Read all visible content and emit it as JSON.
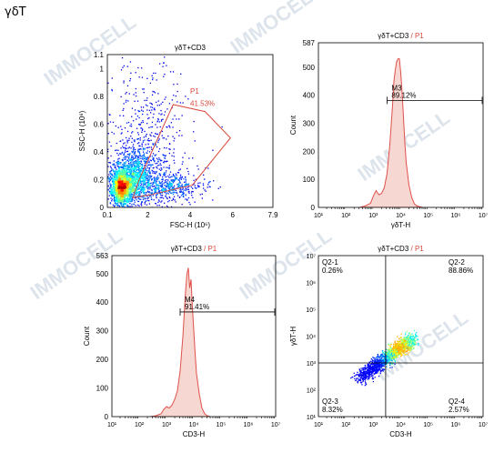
{
  "page_title": "γδT",
  "watermark": "IMMOCELL",
  "colors": {
    "gate": "#d9483b",
    "axis": "#000000",
    "hist_fill": "#f7d7d2",
    "hist_line": "#e0504a"
  },
  "chart_data": [
    {
      "id": "fsc_ssc",
      "type": "scatter",
      "title": "γδT+CD3",
      "xlabel": "FSC-H (10⁶)",
      "ylabel": "SSC-H (10⁶)",
      "xlim": [
        0.1,
        7.9
      ],
      "ylim": [
        0,
        1.1
      ],
      "xticks": [
        0.1,
        2,
        4,
        6,
        7.9
      ],
      "yticks": [
        0,
        0.2,
        0.4,
        0.6,
        0.8,
        1,
        1.1
      ],
      "gate": {
        "name": "P1",
        "percent": "41.53%",
        "polygon": [
          [
            1.3,
            0.07
          ],
          [
            1.6,
            0.2
          ],
          [
            3.2,
            0.74
          ],
          [
            4.7,
            0.69
          ],
          [
            5.9,
            0.5
          ],
          [
            4.1,
            0.16
          ],
          [
            2.1,
            0.09
          ]
        ]
      },
      "density_clusters": [
        {
          "x": 0.75,
          "y": 0.15,
          "sx": 0.3,
          "sy": 0.07,
          "n": 1800
        },
        {
          "x": 1.4,
          "y": 0.22,
          "sx": 0.7,
          "sy": 0.12,
          "n": 1200
        },
        {
          "x": 2.0,
          "y": 0.5,
          "sx": 1.2,
          "sy": 0.35,
          "n": 500
        },
        {
          "x": 3.0,
          "y": 0.15,
          "sx": 1.0,
          "sy": 0.06,
          "n": 400
        }
      ]
    },
    {
      "id": "ygdt_hist",
      "type": "area",
      "title": "γδT+CD3 / P1",
      "title_parts": [
        "γδT+CD3",
        " / ",
        "P1"
      ],
      "xlabel": "γδT-H",
      "ylabel": "Count",
      "xscale": "log",
      "xlim": [
        1,
        7
      ],
      "ylim": [
        0,
        587
      ],
      "xticks": [
        "10¹",
        "10²",
        "10³",
        "10⁴",
        "10⁵",
        "10⁶",
        "10⁷"
      ],
      "yticks": [
        0,
        100,
        200,
        300,
        400,
        500,
        587
      ],
      "x": [
        2.5,
        2.7,
        2.9,
        3.0,
        3.1,
        3.2,
        3.3,
        3.4,
        3.5,
        3.6,
        3.7,
        3.75,
        3.8,
        3.85,
        3.9,
        3.95,
        4.0,
        4.05,
        4.1,
        4.15,
        4.2,
        4.3,
        4.4,
        4.5,
        4.6,
        4.7,
        4.8
      ],
      "values": [
        0,
        5,
        15,
        40,
        60,
        45,
        50,
        70,
        120,
        220,
        360,
        450,
        490,
        520,
        530,
        530,
        480,
        410,
        320,
        230,
        160,
        80,
        35,
        12,
        5,
        2,
        0
      ],
      "marker": {
        "name": "M3",
        "percent": "89.12%",
        "from": 3.5,
        "to": 7
      }
    },
    {
      "id": "cd3_hist",
      "type": "area",
      "title": "γδT+CD3 / P1",
      "title_parts": [
        "γδT+CD3",
        " / ",
        "P1"
      ],
      "xlabel": "CD3-H",
      "ylabel": "Count",
      "xscale": "log",
      "xlim": [
        1,
        7
      ],
      "ylim": [
        0,
        563
      ],
      "xticks": [
        "10¹",
        "10²",
        "10³",
        "10⁴",
        "10⁵",
        "10⁶",
        "10⁷"
      ],
      "yticks": [
        0,
        100,
        200,
        300,
        400,
        500,
        563
      ],
      "x": [
        2.4,
        2.6,
        2.8,
        2.9,
        3.0,
        3.1,
        3.2,
        3.3,
        3.4,
        3.5,
        3.6,
        3.65,
        3.7,
        3.75,
        3.8,
        3.85,
        3.9,
        3.95,
        4.0,
        4.05,
        4.1,
        4.2,
        4.3,
        4.4,
        4.5,
        4.6
      ],
      "values": [
        0,
        3,
        10,
        25,
        35,
        30,
        40,
        60,
        90,
        160,
        280,
        360,
        440,
        500,
        520,
        450,
        480,
        380,
        300,
        220,
        150,
        80,
        30,
        10,
        3,
        0
      ],
      "marker": {
        "name": "M4",
        "percent": "91.41%",
        "from": 3.5,
        "to": 7
      }
    },
    {
      "id": "quadrant",
      "type": "scatter",
      "title": "γδT+CD3 / P1",
      "title_parts": [
        "γδT+CD3",
        " / ",
        "P1"
      ],
      "xlabel": "CD3-H",
      "ylabel": "γδT-H",
      "xscale": "log",
      "yscale": "log",
      "xlim": [
        1,
        7
      ],
      "ylim": [
        1,
        7
      ],
      "xticks": [
        "10¹",
        "10²",
        "10³",
        "10⁴",
        "10⁵",
        "10⁶",
        "10⁷"
      ],
      "yticks": [
        "10¹",
        "10²",
        "10³",
        "10⁴",
        "10⁵",
        "10⁶",
        "10⁷"
      ],
      "quadrant_split": {
        "x": 3.45,
        "y": 3.0
      },
      "quadrants": [
        {
          "name": "Q2-1",
          "percent": "0.26%",
          "corner": "top-left"
        },
        {
          "name": "Q2-2",
          "percent": "88.86%",
          "corner": "top-right"
        },
        {
          "name": "Q2-3",
          "percent": "8.32%",
          "corner": "bottom-left"
        },
        {
          "name": "Q2-4",
          "percent": "2.57%",
          "corner": "bottom-right"
        }
      ],
      "population": {
        "from": [
          2.4,
          2.4
        ],
        "to": [
          4.4,
          3.9
        ],
        "spread": 0.13,
        "n": 1500
      }
    }
  ]
}
